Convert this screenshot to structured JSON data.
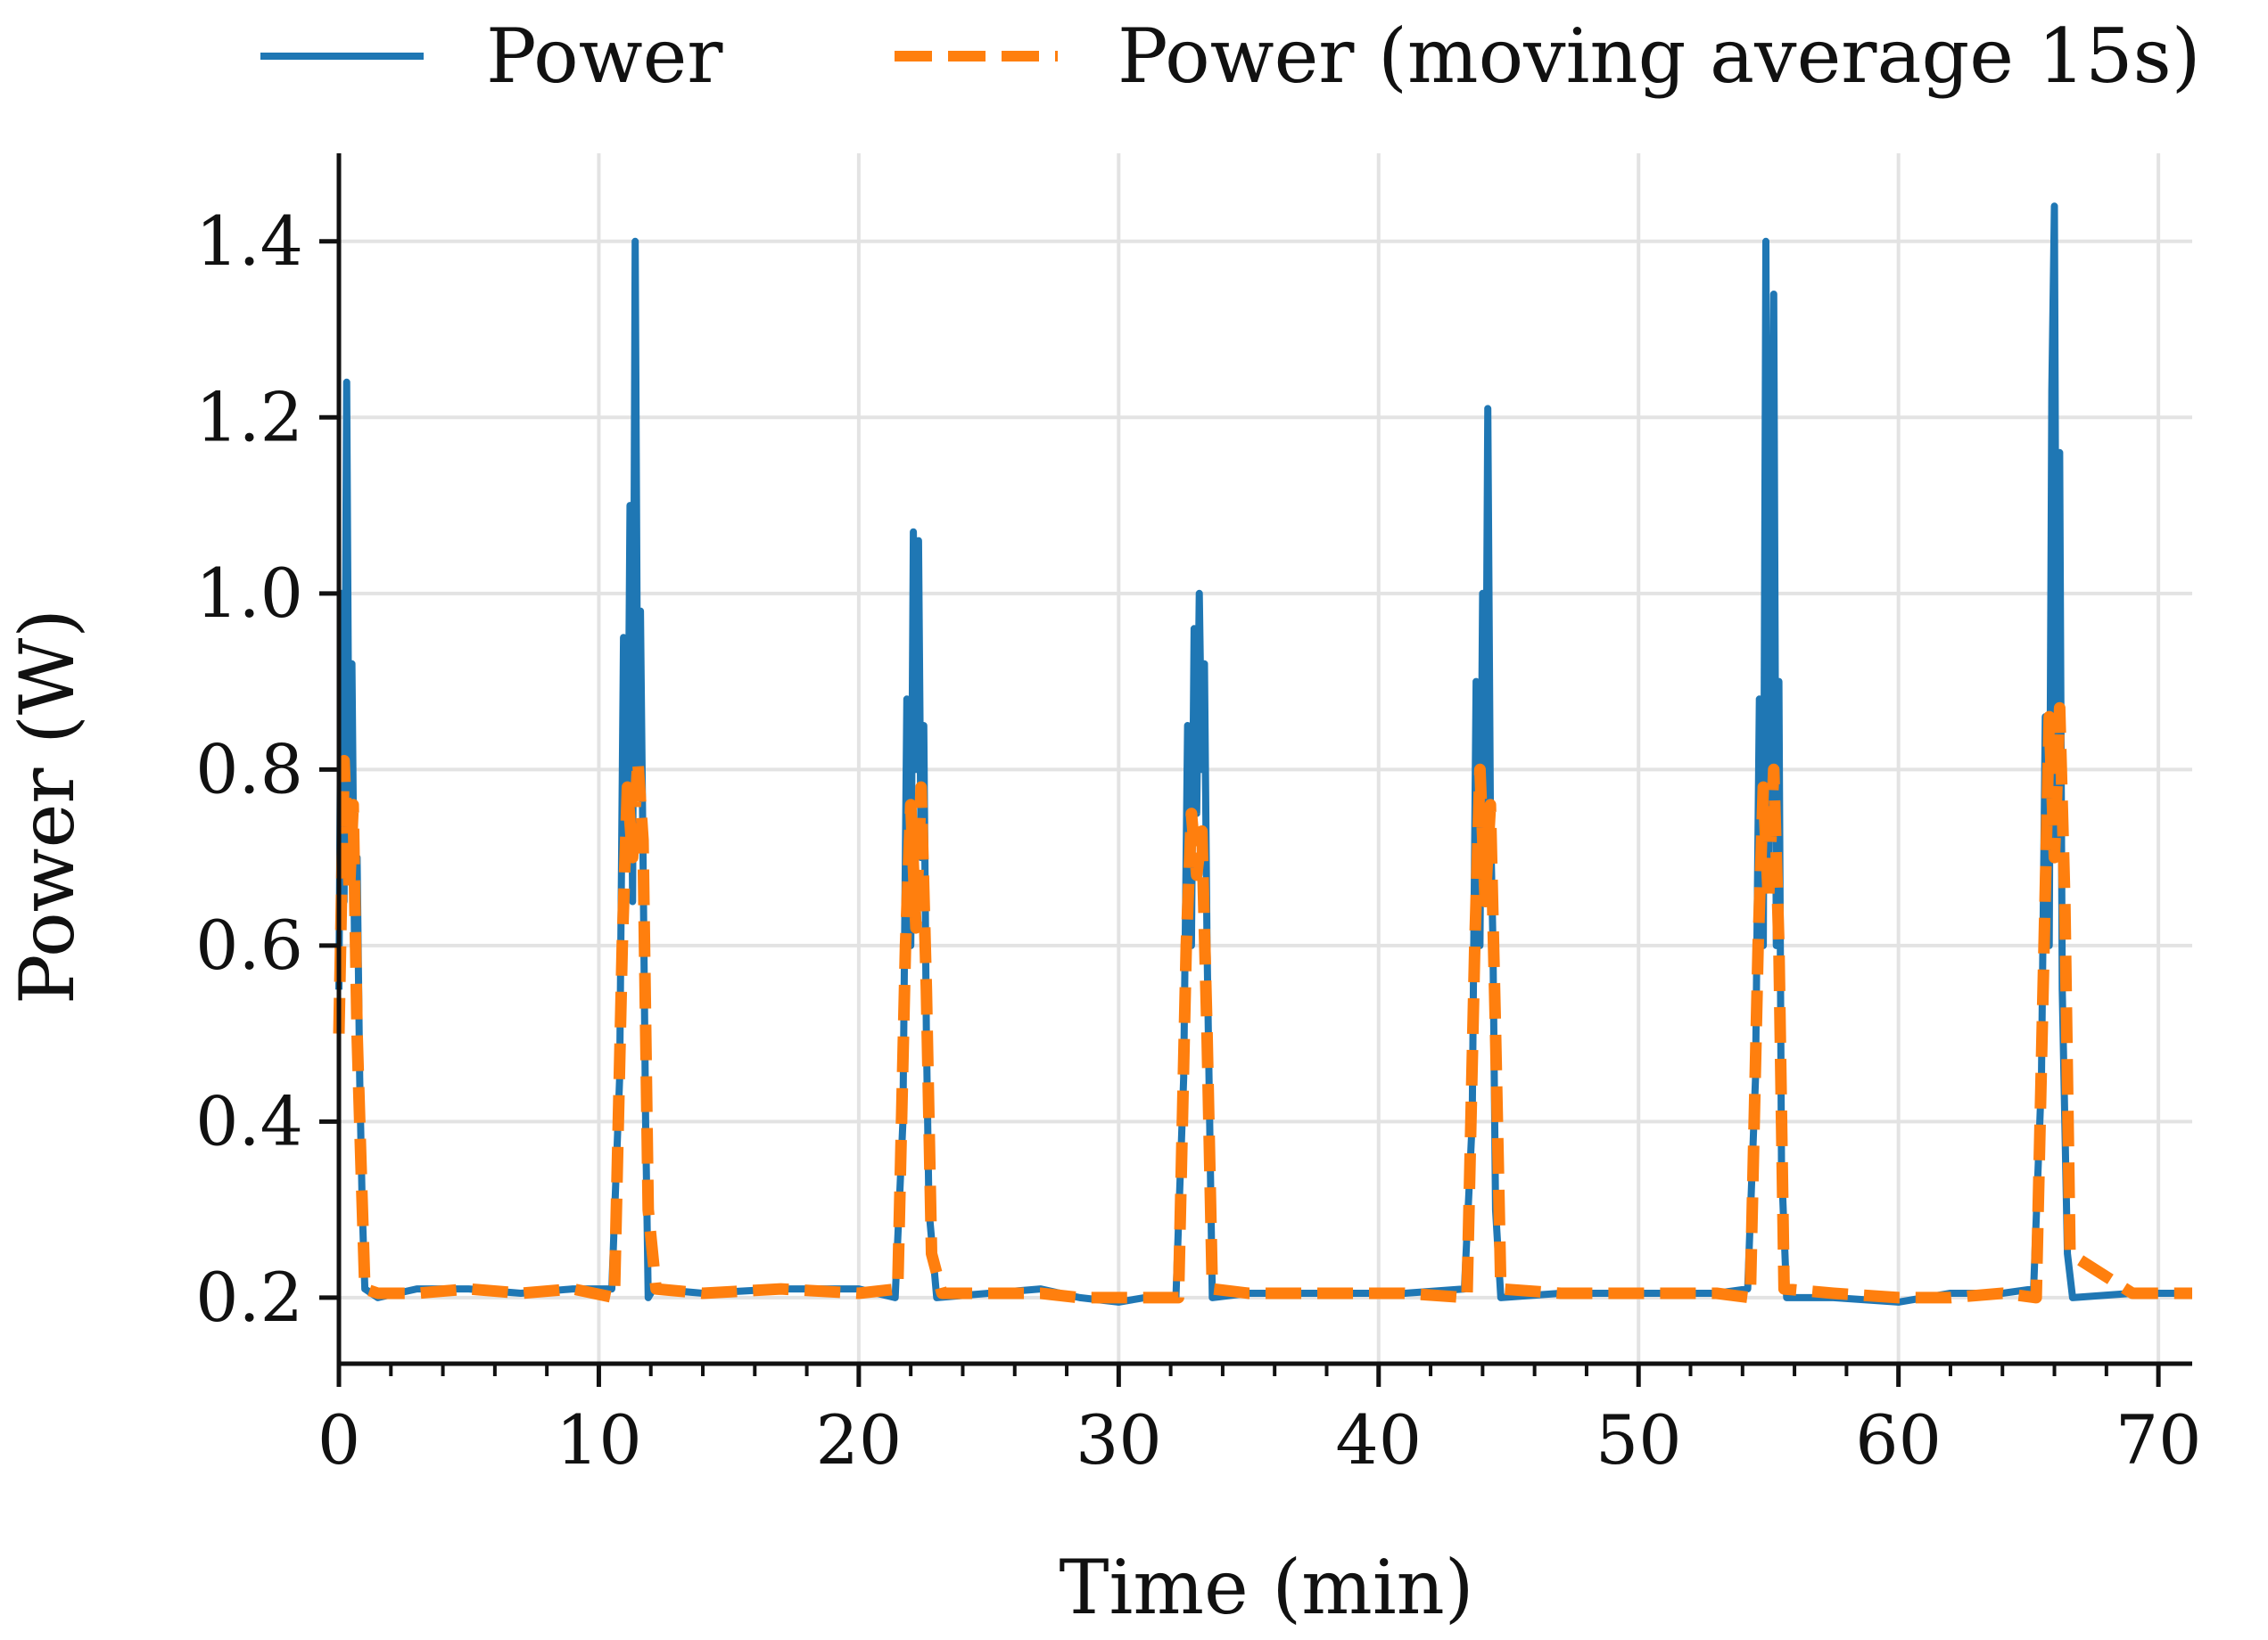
{
  "chart_data": {
    "type": "line",
    "title": "",
    "xlabel": "Time (min)",
    "ylabel": "Power (W)",
    "xlim": [
      0,
      71.3
    ],
    "ylim": [
      0.125,
      1.5
    ],
    "xticks": [
      0,
      10,
      20,
      30,
      40,
      50,
      60,
      70
    ],
    "xtick_labels": [
      "0",
      "10",
      "20",
      "30",
      "40",
      "50",
      "60",
      "70"
    ],
    "yticks": [
      0.2,
      0.4,
      0.6,
      0.8,
      1.0,
      1.2,
      1.4
    ],
    "ytick_labels": [
      "0.2",
      "0.4",
      "0.6",
      "0.8",
      "1.0",
      "1.2",
      "1.4"
    ],
    "grid": true,
    "legend_position": "top",
    "baseline_power_w": 0.205,
    "series": [
      {
        "name": "Power",
        "style": "solid",
        "color": "#1f77b4",
        "x": [
          0,
          0.1,
          0.2,
          0.3,
          0.4,
          0.5,
          0.6,
          0.7,
          0.8,
          0.9,
          1.0,
          1.5,
          3,
          5,
          7,
          9,
          10.5,
          10.8,
          10.95,
          11.1,
          11.2,
          11.3,
          11.4,
          11.5,
          11.6,
          11.7,
          11.8,
          11.9,
          12.1,
          14,
          17,
          20,
          21.4,
          21.7,
          21.85,
          22.0,
          22.1,
          22.2,
          22.3,
          22.4,
          22.5,
          22.6,
          22.7,
          23.0,
          25,
          27,
          28.5,
          30,
          31,
          32.2,
          32.5,
          32.65,
          32.8,
          32.9,
          33.0,
          33.1,
          33.2,
          33.3,
          33.4,
          33.6,
          35,
          38,
          41,
          43.3,
          43.6,
          43.75,
          43.9,
          44.0,
          44.1,
          44.2,
          44.3,
          44.4,
          44.5,
          44.7,
          47,
          50,
          53,
          54.2,
          54.5,
          54.65,
          54.8,
          54.9,
          55.0,
          55.1,
          55.2,
          55.3,
          55.4,
          55.5,
          55.7,
          57.5,
          60,
          62,
          64,
          65.2,
          65.5,
          65.65,
          65.8,
          65.9,
          66.0,
          66.1,
          66.2,
          66.3,
          66.4,
          66.5,
          66.7,
          69,
          71.3
        ],
        "y": [
          0.55,
          1.0,
          0.65,
          1.24,
          0.7,
          0.92,
          0.6,
          0.7,
          0.45,
          0.3,
          0.21,
          0.2,
          0.21,
          0.21,
          0.205,
          0.21,
          0.21,
          0.45,
          0.95,
          0.7,
          1.1,
          0.65,
          1.4,
          0.8,
          0.98,
          0.7,
          0.4,
          0.2,
          0.21,
          0.205,
          0.21,
          0.21,
          0.2,
          0.4,
          0.88,
          0.6,
          1.07,
          0.8,
          1.06,
          0.7,
          0.85,
          0.5,
          0.3,
          0.2,
          0.205,
          0.21,
          0.2,
          0.195,
          0.2,
          0.2,
          0.45,
          0.85,
          0.6,
          0.96,
          0.75,
          1.0,
          0.8,
          0.92,
          0.6,
          0.2,
          0.205,
          0.205,
          0.205,
          0.21,
          0.4,
          0.9,
          0.6,
          1.0,
          0.7,
          1.21,
          0.75,
          0.6,
          0.3,
          0.2,
          0.205,
          0.205,
          0.205,
          0.21,
          0.45,
          0.88,
          0.6,
          1.4,
          0.7,
          0.95,
          1.34,
          0.6,
          0.9,
          0.35,
          0.2,
          0.2,
          0.195,
          0.205,
          0.205,
          0.21,
          0.45,
          0.86,
          0.6,
          1.23,
          1.44,
          0.7,
          1.16,
          0.55,
          0.4,
          0.25,
          0.2,
          0.205,
          0.205
        ]
      },
      {
        "name": "Power (moving average 15s)",
        "style": "dashed",
        "color": "#ff7f0e",
        "x": [
          0,
          0.2,
          0.4,
          0.55,
          0.7,
          0.85,
          1.0,
          1.5,
          3,
          5,
          7,
          9,
          10.6,
          10.9,
          11.1,
          11.3,
          11.5,
          11.7,
          11.9,
          12.2,
          14,
          17,
          20,
          21.5,
          21.8,
          22.0,
          22.2,
          22.4,
          22.6,
          22.8,
          23.2,
          25,
          27,
          28.5,
          30,
          31,
          32.3,
          32.6,
          32.8,
          33.0,
          33.2,
          33.4,
          33.6,
          35,
          38,
          41,
          43.4,
          43.7,
          43.9,
          44.1,
          44.3,
          44.5,
          44.7,
          47,
          50,
          53,
          54.3,
          54.6,
          54.8,
          55.0,
          55.2,
          55.4,
          55.6,
          57.5,
          60,
          62,
          64,
          65.3,
          65.6,
          65.8,
          66.0,
          66.2,
          66.4,
          66.6,
          69,
          71.3
        ],
        "y": [
          0.5,
          0.81,
          0.66,
          0.76,
          0.5,
          0.35,
          0.21,
          0.205,
          0.205,
          0.21,
          0.205,
          0.21,
          0.2,
          0.6,
          0.78,
          0.7,
          0.81,
          0.72,
          0.3,
          0.21,
          0.205,
          0.21,
          0.205,
          0.21,
          0.6,
          0.76,
          0.62,
          0.78,
          0.55,
          0.25,
          0.205,
          0.205,
          0.205,
          0.2,
          0.2,
          0.2,
          0.2,
          0.6,
          0.75,
          0.68,
          0.73,
          0.5,
          0.21,
          0.205,
          0.205,
          0.205,
          0.2,
          0.6,
          0.8,
          0.65,
          0.76,
          0.5,
          0.21,
          0.205,
          0.205,
          0.205,
          0.2,
          0.6,
          0.78,
          0.65,
          0.8,
          0.6,
          0.21,
          0.205,
          0.2,
          0.2,
          0.205,
          0.2,
          0.6,
          0.86,
          0.7,
          0.87,
          0.65,
          0.25,
          0.205,
          0.205
        ]
      }
    ]
  }
}
